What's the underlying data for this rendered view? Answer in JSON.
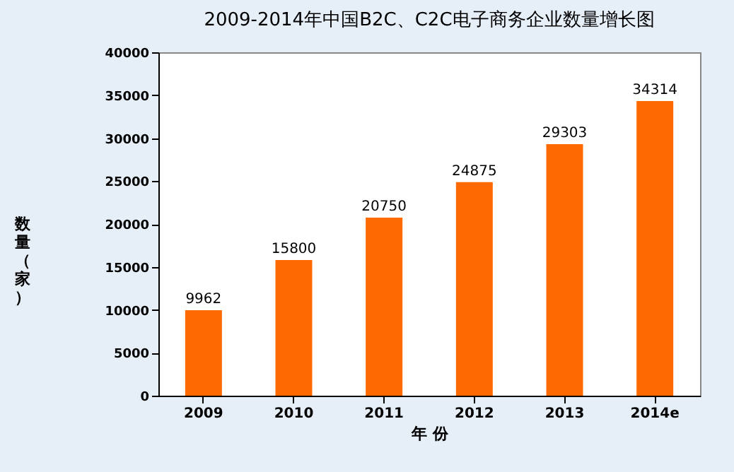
{
  "chart_data": {
    "type": "bar",
    "title": "2009-2014年中国B2C、C2C电子商务企业数量增长图",
    "xlabel": "年 份",
    "ylabel": "数量（家）",
    "categories": [
      "2009",
      "2010",
      "2011",
      "2012",
      "2013",
      "2014e"
    ],
    "values": [
      9962,
      15800,
      20750,
      24875,
      29303,
      34314
    ],
    "color": "#ff6a00",
    "ylim": [
      0,
      40000
    ],
    "yticks": [
      0,
      5000,
      10000,
      15000,
      20000,
      25000,
      30000,
      35000,
      40000
    ],
    "data_labels": true,
    "grid": false
  }
}
